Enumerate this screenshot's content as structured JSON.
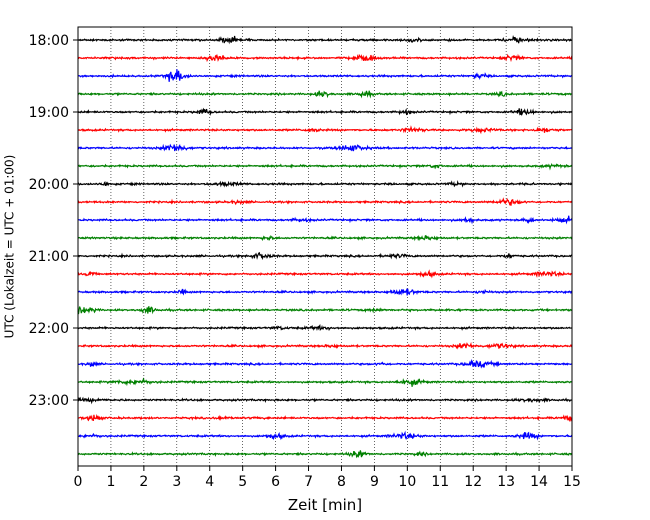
{
  "chart_data": {
    "type": "line",
    "title": "",
    "xlabel": "Zeit  [min]",
    "ylabel": "UTC (Lokalzeit = UTC + 01:00)",
    "xlim": [
      0,
      15
    ],
    "x_ticks": [
      "0",
      "1",
      "2",
      "3",
      "4",
      "5",
      "6",
      "7",
      "8",
      "9",
      "10",
      "11",
      "12",
      "13",
      "14",
      "15"
    ],
    "y_ticks": [
      "18:00",
      "19:00",
      "20:00",
      "21:00",
      "22:00",
      "23:00"
    ],
    "grid": "vertical dotted",
    "trace_interval_minutes": 15,
    "start_time": "18:00",
    "trace_colors": [
      "#000000",
      "#ff0000",
      "#0000ff",
      "#008000"
    ],
    "series": [
      {
        "time": "18:00",
        "color": "#000000"
      },
      {
        "time": "18:15",
        "color": "#ff0000"
      },
      {
        "time": "18:30",
        "color": "#0000ff"
      },
      {
        "time": "18:45",
        "color": "#008000"
      },
      {
        "time": "19:00",
        "color": "#000000"
      },
      {
        "time": "19:15",
        "color": "#ff0000"
      },
      {
        "time": "19:30",
        "color": "#0000ff"
      },
      {
        "time": "19:45",
        "color": "#008000"
      },
      {
        "time": "20:00",
        "color": "#000000"
      },
      {
        "time": "20:15",
        "color": "#ff0000"
      },
      {
        "time": "20:30",
        "color": "#0000ff"
      },
      {
        "time": "20:45",
        "color": "#008000"
      },
      {
        "time": "21:00",
        "color": "#000000"
      },
      {
        "time": "21:15",
        "color": "#ff0000"
      },
      {
        "time": "21:30",
        "color": "#0000ff"
      },
      {
        "time": "21:45",
        "color": "#008000"
      },
      {
        "time": "22:00",
        "color": "#000000"
      },
      {
        "time": "22:15",
        "color": "#ff0000"
      },
      {
        "time": "22:30",
        "color": "#0000ff"
      },
      {
        "time": "22:45",
        "color": "#008000"
      },
      {
        "time": "23:00",
        "color": "#000000"
      },
      {
        "time": "23:15",
        "color": "#ff0000"
      },
      {
        "time": "23:30",
        "color": "#0000ff"
      },
      {
        "time": "23:45",
        "color": "#008000"
      }
    ]
  }
}
